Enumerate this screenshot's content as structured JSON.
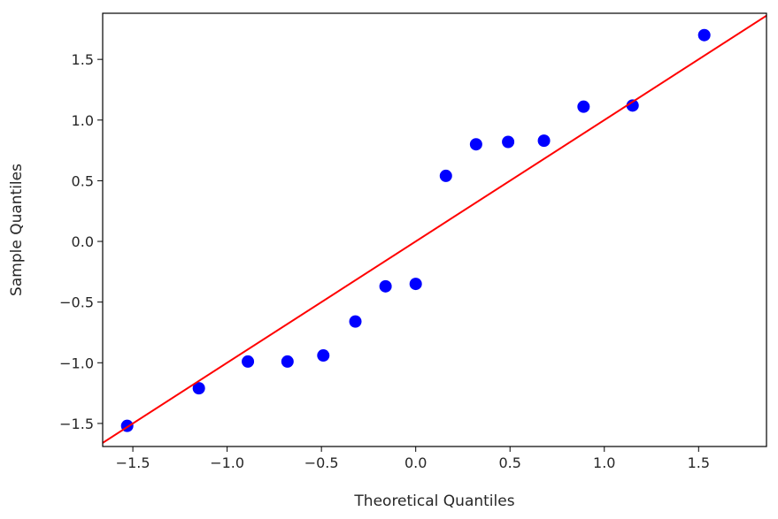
{
  "chart_data": {
    "type": "scatter",
    "title": "",
    "xlabel": "Theoretical Quantiles",
    "ylabel": "Sample Quantiles",
    "xlim": [
      -1.66,
      1.86
    ],
    "ylim": [
      -1.69,
      1.88
    ],
    "x_ticks": [
      -1.5,
      -1.0,
      -0.5,
      0.0,
      0.5,
      1.0,
      1.5
    ],
    "x_tick_labels": [
      "−1.5",
      "−1.0",
      "−0.5",
      "0.0",
      "0.5",
      "1.0",
      "1.5"
    ],
    "y_ticks": [
      -1.5,
      -1.0,
      -0.5,
      0.0,
      0.5,
      1.0,
      1.5
    ],
    "y_tick_labels": [
      "−1.5",
      "−1.0",
      "−0.5",
      "0.0",
      "0.5",
      "1.0",
      "1.5"
    ],
    "grid": false,
    "points": {
      "color": "#0000ff",
      "x": [
        -1.53,
        -1.15,
        -0.89,
        -0.68,
        -0.49,
        -0.32,
        -0.16,
        0.0,
        0.16,
        0.32,
        0.49,
        0.68,
        0.89,
        1.15,
        1.53
      ],
      "y": [
        -1.52,
        -1.21,
        -0.99,
        -0.99,
        -0.94,
        -0.66,
        -0.37,
        -0.35,
        0.54,
        0.8,
        0.82,
        0.83,
        1.11,
        1.12,
        1.7
      ]
    },
    "reference_line": {
      "color": "#ff0000",
      "slope": 1.0,
      "intercept": 0.0
    }
  }
}
